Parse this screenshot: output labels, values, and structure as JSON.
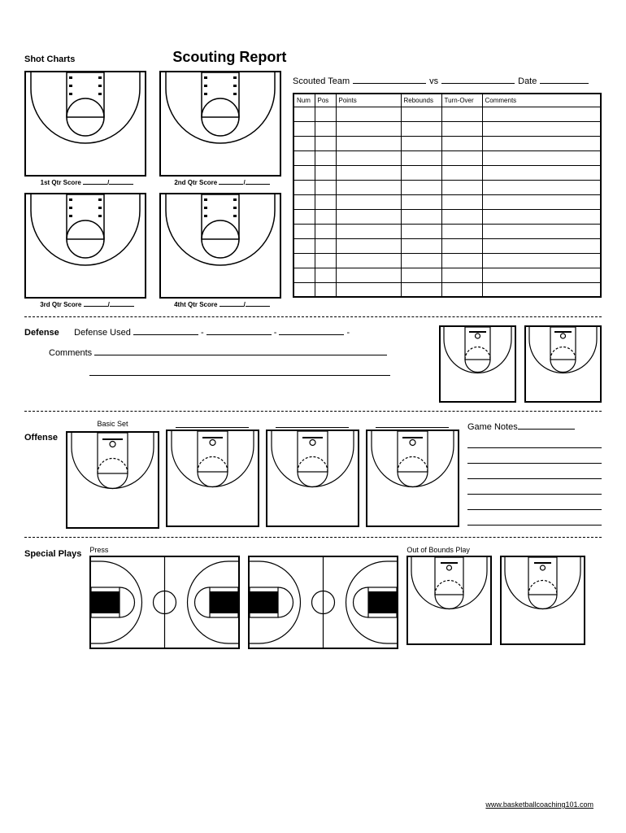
{
  "title": "Scouting Report",
  "labels": {
    "shot_charts": "Shot Charts",
    "scouted_team": "Scouted Team",
    "vs": "vs",
    "date": "Date",
    "defense": "Defense",
    "defense_used": "Defense Used",
    "comments": "Comments",
    "offense": "Offense",
    "basic_set": "Basic Set",
    "game_notes": "Game Notes",
    "special_plays": "Special Plays",
    "press": "Press",
    "oob": "Out of Bounds Play"
  },
  "quarters": [
    "1st Qtr Score",
    "2nd Qtr Score",
    "3rd Qtr Score",
    "4tht Qtr Score"
  ],
  "table": {
    "headers": [
      "Num",
      "Pos",
      "Points",
      "Rebounds",
      "Turn-Over",
      "Comments"
    ],
    "row_count": 13
  },
  "style": {
    "line_color": "#000000",
    "dash_array": "4,3",
    "border_color": "#000000"
  },
  "footer": "www.basketballcoaching101.com",
  "game_notes_lines": 6
}
